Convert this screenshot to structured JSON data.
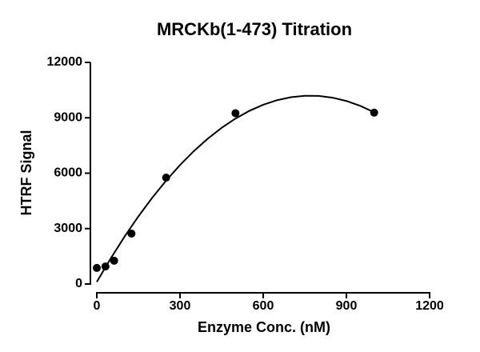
{
  "chart_data": {
    "type": "scatter",
    "title": "MRCKb(1-473) Titration",
    "x_label": "Enzyme Conc. (nM)",
    "y_label": "HTRF Signal",
    "xlim": [
      0,
      1200
    ],
    "ylim": [
      0,
      12000
    ],
    "xticks": [
      0,
      300,
      600,
      900,
      1200
    ],
    "yticks": [
      0,
      3000,
      6000,
      9000,
      12000
    ],
    "points": {
      "color": "#000000",
      "x": [
        0,
        31.25,
        62.5,
        125,
        250,
        500,
        1000
      ],
      "values": [
        870,
        950,
        1260,
        2730,
        5760,
        9250,
        9280
      ]
    },
    "fit": {
      "color": "#000000",
      "x": [
        0,
        50,
        100,
        150,
        200,
        250,
        300,
        350,
        400,
        450,
        500,
        550,
        600,
        650,
        700,
        750,
        800,
        850,
        900,
        950,
        1000
      ],
      "values": [
        114,
        1381,
        2563,
        3661,
        4673,
        5600,
        6442,
        7199,
        7870,
        8457,
        8959,
        9376,
        9707,
        9954,
        10116,
        10192,
        10184,
        10090,
        9911,
        9648,
        9299
      ]
    }
  }
}
